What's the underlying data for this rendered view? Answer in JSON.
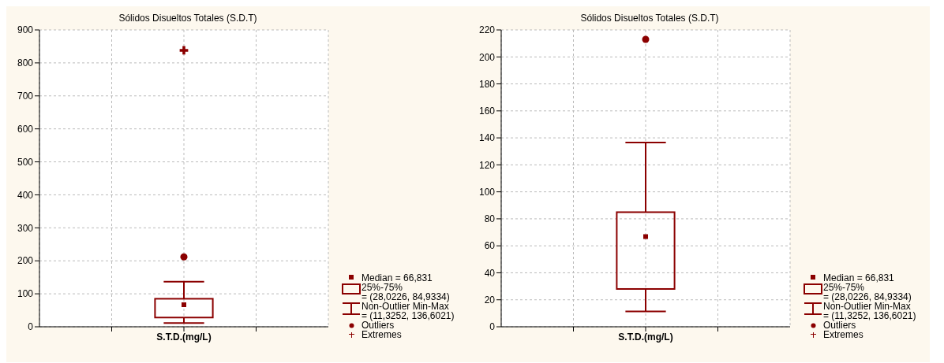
{
  "chart_data": [
    {
      "type": "box",
      "title": "Sólidos Disueltos Totales (S.D.T)",
      "categories": [
        "S.T.D.(mg/L)"
      ],
      "ylim": [
        0,
        900
      ],
      "yticks": [
        0,
        100,
        200,
        300,
        400,
        500,
        600,
        700,
        800,
        900
      ],
      "grid": true,
      "legend": "bottom right",
      "annotations": [
        "Median = 66,831",
        "25%-75%\n= (28,0226, 84,9334)",
        "Non-Outlier Min-Max\n= (11,3252, 136,6021)"
      ],
      "series": [
        {
          "type": "box",
          "color": "#8b0000",
          "boxes": [
            {
              "low": 11.3252,
              "q1": 28.0226,
              "median": 66.831,
              "q3": 84.9334,
              "high": 136.6021
            }
          ]
        },
        {
          "type": "scatter",
          "name": "Outliers",
          "color": "#8b0000",
          "marker": "circle",
          "x": [
            "S.T.D.(mg/L)"
          ],
          "values": [
            212
          ]
        },
        {
          "type": "scatter",
          "name": "Extremes",
          "color": "#8b0000",
          "marker": "cross",
          "x": [
            "S.T.D.(mg/L)"
          ],
          "values": [
            838
          ]
        }
      ]
    },
    {
      "type": "box",
      "title": "Sólidos Disueltos Totales (S.D.T)",
      "categories": [
        "S.T.D.(mg/L)"
      ],
      "ylim": [
        0,
        220
      ],
      "yticks": [
        0,
        20,
        40,
        60,
        80,
        100,
        120,
        140,
        160,
        180,
        200,
        220
      ],
      "grid": true,
      "legend": "bottom right",
      "annotations": [
        "Median = 66,831",
        "25%-75%\n= (28,0226, 84,9334)",
        "Non-Outlier Min-Max\n= (11,3252, 136,6021)"
      ],
      "series": [
        {
          "type": "box",
          "color": "#8b0000",
          "boxes": [
            {
              "low": 11.3252,
              "q1": 28.0226,
              "median": 66.831,
              "q3": 84.9334,
              "high": 136.6021
            }
          ]
        },
        {
          "type": "scatter",
          "name": "Outliers",
          "color": "#8b0000",
          "marker": "circle",
          "x": [
            "S.T.D.(mg/L)"
          ],
          "values": [
            213
          ]
        },
        {
          "type": "scatter",
          "name": "Extremes",
          "color": "#8b0000",
          "marker": "cross",
          "x": [
            "S.T.D.(mg/L)"
          ],
          "values": [
            null
          ]
        }
      ]
    }
  ]
}
